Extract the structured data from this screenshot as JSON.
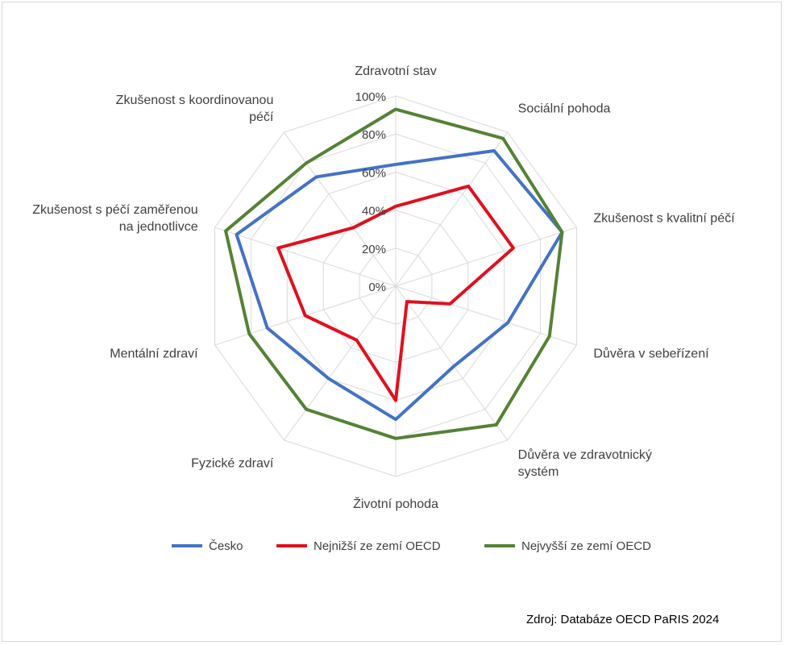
{
  "chart_data": {
    "type": "radar",
    "categories": [
      [
        "Zdravotní stav"
      ],
      [
        "Sociální pohoda"
      ],
      [
        "Zkušenost s kvalitní péčí"
      ],
      [
        "Důvěra v sebeřízení"
      ],
      [
        "Důvěra ve zdravotnický",
        "systém"
      ],
      [
        "Životní pohoda"
      ],
      [
        "Fyzické zdraví"
      ],
      [
        "Mentální zdraví"
      ],
      [
        "Zkušenost s péčí zaměřenou",
        "na jednotlivce"
      ],
      [
        "Zkušenost s koordinovanou",
        "péčí"
      ]
    ],
    "ticks": [
      "0%",
      "20%",
      "40%",
      "60%",
      "80%",
      "100%"
    ],
    "rmin": 0,
    "rmax": 100,
    "series": [
      {
        "name": "Česko",
        "color": "#4472c4",
        "values": [
          64,
          88,
          92,
          62,
          52,
          70,
          60,
          71,
          88,
          71
        ]
      },
      {
        "name": "Nejnižší ze zemí OECD",
        "color": "#e0101e",
        "values": [
          42,
          65,
          65,
          30,
          10,
          60,
          35,
          50,
          65,
          38
        ]
      },
      {
        "name": "Nejvyšší ze zemí  OECD",
        "color": "#548235",
        "values": [
          93,
          96,
          92,
          85,
          90,
          80,
          80,
          81,
          94,
          80
        ]
      }
    ],
    "legend_position": "bottom",
    "grid": true
  },
  "source": "Zdroj: Databáze OECD PaRIS 2024"
}
